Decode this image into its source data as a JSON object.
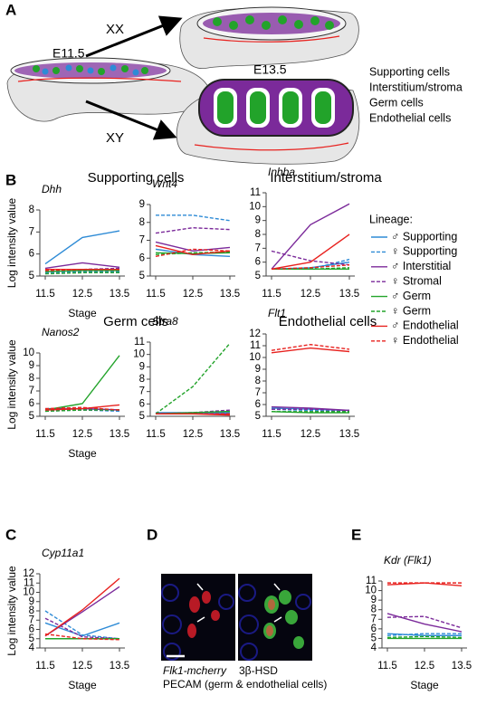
{
  "figure": {
    "panels": [
      "A",
      "B",
      "C",
      "D",
      "E"
    ]
  },
  "diagram": {
    "stage_early": "E11.5",
    "xx": "XX",
    "xy": "XY",
    "stage_late": "E13.5",
    "cell_types": [
      {
        "label": "Supporting cells",
        "color": "#2e8bd6"
      },
      {
        "label": "Interstitium/stroma",
        "color": "#7b2a9a"
      },
      {
        "label": "Germ cells",
        "color": "#22a32a"
      },
      {
        "label": "Endothelial cells",
        "color": "#e8221f"
      }
    ]
  },
  "group_titles": [
    {
      "text": "Supporting cells",
      "color": "#2e8bd6"
    },
    {
      "text": "Interstitium/stroma",
      "color": "#7b2a9a"
    },
    {
      "text": "Germ cells",
      "color": "#22a32a"
    },
    {
      "text": "Endothelial cells",
      "color": "#e8221f"
    }
  ],
  "legend": {
    "title": "Lineage:",
    "entries": [
      {
        "name": "♂ Supporting",
        "color": "#2e8bd6",
        "dash": false
      },
      {
        "name": "♀ Supporting",
        "color": "#2e8bd6",
        "dash": true
      },
      {
        "name": "♂ Interstitial",
        "color": "#7b2a9a",
        "dash": false
      },
      {
        "name": "♀ Stromal",
        "color": "#7b2a9a",
        "dash": true
      },
      {
        "name": "♂ Germ",
        "color": "#22a32a",
        "dash": false
      },
      {
        "name": "♀ Germ",
        "color": "#22a32a",
        "dash": true
      },
      {
        "name": "♂ Endothelial",
        "color": "#e8221f",
        "dash": false
      },
      {
        "name": "♀ Endothelial",
        "color": "#e8221f",
        "dash": true
      }
    ]
  },
  "micrograph": {
    "labels": [
      {
        "text": "Flk1-mcherry",
        "color": "#e8221f",
        "italic": true
      },
      {
        "text": "3β-HSD",
        "color": "#22a32a",
        "italic": false
      },
      {
        "text": "PECAM (germ & endothelial cells)",
        "color": "#2222b0",
        "italic": false
      }
    ]
  },
  "chart_data": [
    {
      "type": "line",
      "title": "Dhh",
      "xlabel": "Stage",
      "ylabel": "Log intensity value",
      "x": [
        11.5,
        12.5,
        13.5
      ],
      "xlim": [
        11.5,
        13.5
      ],
      "xticks": [
        11.5,
        12.5,
        13.5
      ],
      "ylim": [
        5,
        8
      ],
      "yticks": [
        5,
        6,
        7,
        8
      ],
      "series": [
        {
          "color": "#2e8bd6",
          "dash": false,
          "values": [
            5.55,
            6.75,
            7.05
          ]
        },
        {
          "color": "#2e8bd6",
          "dash": true,
          "values": [
            5.15,
            5.2,
            5.2
          ]
        },
        {
          "color": "#7b2a9a",
          "dash": false,
          "values": [
            5.35,
            5.6,
            5.4
          ]
        },
        {
          "color": "#7b2a9a",
          "dash": true,
          "values": [
            5.3,
            5.3,
            5.35
          ]
        },
        {
          "color": "#22a32a",
          "dash": false,
          "values": [
            5.2,
            5.25,
            5.25
          ]
        },
        {
          "color": "#22a32a",
          "dash": true,
          "values": [
            5.1,
            5.15,
            5.15
          ]
        },
        {
          "color": "#e8221f",
          "dash": false,
          "values": [
            5.3,
            5.3,
            5.3
          ]
        },
        {
          "color": "#e8221f",
          "dash": true,
          "values": [
            5.25,
            5.3,
            5.3
          ]
        }
      ]
    },
    {
      "type": "line",
      "title": "Wnt4",
      "x": [
        11.5,
        12.5,
        13.5
      ],
      "xlim": [
        11.5,
        13.5
      ],
      "xticks": [
        11.5,
        12.5,
        13.5
      ],
      "ylim": [
        5,
        9
      ],
      "yticks": [
        5,
        6,
        7,
        8,
        9
      ],
      "series": [
        {
          "color": "#2e8bd6",
          "dash": false,
          "values": [
            6.5,
            6.2,
            6.1
          ]
        },
        {
          "color": "#2e8bd6",
          "dash": true,
          "values": [
            8.4,
            8.4,
            8.1
          ]
        },
        {
          "color": "#7b2a9a",
          "dash": false,
          "values": [
            6.9,
            6.4,
            6.6
          ]
        },
        {
          "color": "#7b2a9a",
          "dash": true,
          "values": [
            7.4,
            7.7,
            7.6
          ]
        },
        {
          "color": "#22a32a",
          "dash": false,
          "values": [
            6.3,
            6.25,
            6.3
          ]
        },
        {
          "color": "#22a32a",
          "dash": true,
          "values": [
            6.2,
            6.3,
            6.35
          ]
        },
        {
          "color": "#e8221f",
          "dash": false,
          "values": [
            6.7,
            6.2,
            6.4
          ]
        },
        {
          "color": "#e8221f",
          "dash": true,
          "values": [
            6.1,
            6.5,
            6.4
          ]
        }
      ]
    },
    {
      "type": "line",
      "title": "Inhba",
      "x": [
        11.5,
        12.5,
        13.5
      ],
      "xlim": [
        11.5,
        13.5
      ],
      "xticks": [
        11.5,
        12.5,
        13.5
      ],
      "ylim": [
        5,
        11
      ],
      "yticks": [
        5,
        6,
        7,
        8,
        9,
        10,
        11
      ],
      "series": [
        {
          "color": "#2e8bd6",
          "dash": false,
          "values": [
            5.5,
            5.6,
            6.0
          ]
        },
        {
          "color": "#2e8bd6",
          "dash": true,
          "values": [
            5.5,
            5.5,
            6.2
          ]
        },
        {
          "color": "#7b2a9a",
          "dash": false,
          "values": [
            5.5,
            8.7,
            10.2
          ]
        },
        {
          "color": "#7b2a9a",
          "dash": true,
          "values": [
            6.8,
            6.1,
            5.8
          ]
        },
        {
          "color": "#22a32a",
          "dash": false,
          "values": [
            5.5,
            5.5,
            5.5
          ]
        },
        {
          "color": "#22a32a",
          "dash": true,
          "values": [
            5.5,
            5.5,
            5.6
          ]
        },
        {
          "color": "#e8221f",
          "dash": false,
          "values": [
            5.5,
            6.0,
            8.0
          ]
        },
        {
          "color": "#e8221f",
          "dash": true,
          "values": [
            5.5,
            5.6,
            5.8
          ]
        }
      ]
    },
    {
      "type": "line",
      "title": "Nanos2",
      "xlabel": "Stage",
      "ylabel": "Log intensity value",
      "x": [
        11.5,
        12.5,
        13.5
      ],
      "xlim": [
        11.5,
        13.5
      ],
      "xticks": [
        11.5,
        12.5,
        13.5
      ],
      "ylim": [
        5,
        10
      ],
      "yticks": [
        5,
        6,
        7,
        8,
        9,
        10
      ],
      "series": [
        {
          "color": "#2e8bd6",
          "dash": false,
          "values": [
            5.5,
            5.6,
            5.5
          ]
        },
        {
          "color": "#2e8bd6",
          "dash": true,
          "values": [
            5.4,
            5.5,
            5.4
          ]
        },
        {
          "color": "#7b2a9a",
          "dash": false,
          "values": [
            5.6,
            5.6,
            5.5
          ]
        },
        {
          "color": "#7b2a9a",
          "dash": true,
          "values": [
            5.5,
            5.5,
            5.5
          ]
        },
        {
          "color": "#22a32a",
          "dash": false,
          "values": [
            5.5,
            6.0,
            9.8
          ]
        },
        {
          "color": "#22a32a",
          "dash": true,
          "values": [
            5.4,
            5.5,
            5.5
          ]
        },
        {
          "color": "#e8221f",
          "dash": false,
          "values": [
            5.5,
            5.6,
            5.9
          ]
        },
        {
          "color": "#e8221f",
          "dash": true,
          "values": [
            5.6,
            5.7,
            5.5
          ]
        }
      ]
    },
    {
      "type": "line",
      "title": "Stra8",
      "x": [
        11.5,
        12.5,
        13.5
      ],
      "xlim": [
        11.5,
        13.5
      ],
      "xticks": [
        11.5,
        12.5,
        13.5
      ],
      "ylim": [
        5,
        11
      ],
      "yticks": [
        5,
        6,
        7,
        8,
        9,
        10,
        11
      ],
      "series": [
        {
          "color": "#2e8bd6",
          "dash": false,
          "values": [
            5.3,
            5.3,
            5.3
          ]
        },
        {
          "color": "#2e8bd6",
          "dash": true,
          "values": [
            5.2,
            5.2,
            5.3
          ]
        },
        {
          "color": "#7b2a9a",
          "dash": false,
          "values": [
            5.2,
            5.2,
            5.2
          ]
        },
        {
          "color": "#7b2a9a",
          "dash": true,
          "values": [
            5.2,
            5.3,
            5.5
          ]
        },
        {
          "color": "#22a32a",
          "dash": false,
          "values": [
            5.2,
            5.3,
            5.4
          ]
        },
        {
          "color": "#22a32a",
          "dash": true,
          "values": [
            5.2,
            7.4,
            10.9
          ]
        },
        {
          "color": "#e8221f",
          "dash": false,
          "values": [
            5.2,
            5.2,
            5.1
          ]
        },
        {
          "color": "#e8221f",
          "dash": true,
          "values": [
            5.2,
            5.2,
            5.2
          ]
        }
      ]
    },
    {
      "type": "line",
      "title": "Flt1",
      "x": [
        11.5,
        12.5,
        13.5
      ],
      "xlim": [
        11.5,
        13.5
      ],
      "xticks": [
        11.5,
        12.5,
        13.5
      ],
      "ylim": [
        5,
        12
      ],
      "yticks": [
        5,
        6,
        7,
        8,
        9,
        10,
        11,
        12
      ],
      "series": [
        {
          "color": "#2e8bd6",
          "dash": false,
          "values": [
            5.7,
            5.6,
            5.5
          ]
        },
        {
          "color": "#2e8bd6",
          "dash": true,
          "values": [
            5.6,
            5.5,
            5.4
          ]
        },
        {
          "color": "#7b2a9a",
          "dash": false,
          "values": [
            5.8,
            5.7,
            5.5
          ]
        },
        {
          "color": "#7b2a9a",
          "dash": true,
          "values": [
            5.6,
            5.6,
            5.5
          ]
        },
        {
          "color": "#22a32a",
          "dash": false,
          "values": [
            5.4,
            5.3,
            5.3
          ]
        },
        {
          "color": "#22a32a",
          "dash": true,
          "values": [
            5.4,
            5.4,
            5.4
          ]
        },
        {
          "color": "#e8221f",
          "dash": false,
          "values": [
            10.4,
            10.8,
            10.5
          ]
        },
        {
          "color": "#e8221f",
          "dash": true,
          "values": [
            10.6,
            11.1,
            10.7
          ]
        }
      ]
    },
    {
      "type": "line",
      "title": "Cyp11a1",
      "xlabel": "Stage",
      "ylabel": "Log intensity value",
      "x": [
        11.5,
        12.5,
        13.5
      ],
      "xlim": [
        11.5,
        13.5
      ],
      "xticks": [
        11.5,
        12.5,
        13.5
      ],
      "ylim": [
        4,
        12
      ],
      "yticks": [
        4,
        5,
        6,
        7,
        8,
        9,
        10,
        11,
        12
      ],
      "series": [
        {
          "color": "#2e8bd6",
          "dash": false,
          "values": [
            6.7,
            5.3,
            6.7
          ]
        },
        {
          "color": "#2e8bd6",
          "dash": true,
          "values": [
            8.0,
            5.4,
            5.0
          ]
        },
        {
          "color": "#7b2a9a",
          "dash": false,
          "values": [
            5.3,
            7.9,
            10.6
          ]
        },
        {
          "color": "#7b2a9a",
          "dash": true,
          "values": [
            7.2,
            5.2,
            5.0
          ]
        },
        {
          "color": "#22a32a",
          "dash": false,
          "values": [
            5.0,
            5.0,
            5.0
          ]
        },
        {
          "color": "#22a32a",
          "dash": true,
          "values": [
            5.0,
            5.0,
            5.0
          ]
        },
        {
          "color": "#e8221f",
          "dash": false,
          "values": [
            5.3,
            8.1,
            11.5
          ]
        },
        {
          "color": "#e8221f",
          "dash": true,
          "values": [
            5.5,
            5.0,
            4.9
          ]
        }
      ]
    },
    {
      "type": "line",
      "title": "Kdr (Flk1)",
      "xlabel": "Stage",
      "x": [
        11.5,
        12.5,
        13.5
      ],
      "xlim": [
        11.5,
        13.5
      ],
      "xticks": [
        11.5,
        12.5,
        13.5
      ],
      "ylim": [
        4,
        11
      ],
      "yticks": [
        4,
        5,
        6,
        7,
        8,
        9,
        10,
        11
      ],
      "series": [
        {
          "color": "#2e8bd6",
          "dash": false,
          "values": [
            5.5,
            5.3,
            5.3
          ]
        },
        {
          "color": "#2e8bd6",
          "dash": true,
          "values": [
            5.3,
            5.5,
            5.5
          ]
        },
        {
          "color": "#7b2a9a",
          "dash": false,
          "values": [
            7.6,
            6.5,
            5.7
          ]
        },
        {
          "color": "#7b2a9a",
          "dash": true,
          "values": [
            7.2,
            7.3,
            6.1
          ]
        },
        {
          "color": "#22a32a",
          "dash": false,
          "values": [
            5.0,
            5.0,
            5.0
          ]
        },
        {
          "color": "#22a32a",
          "dash": true,
          "values": [
            5.1,
            5.2,
            5.1
          ]
        },
        {
          "color": "#e8221f",
          "dash": false,
          "values": [
            10.6,
            10.8,
            10.5
          ]
        },
        {
          "color": "#e8221f",
          "dash": true,
          "values": [
            10.8,
            10.8,
            10.8
          ]
        }
      ]
    }
  ]
}
